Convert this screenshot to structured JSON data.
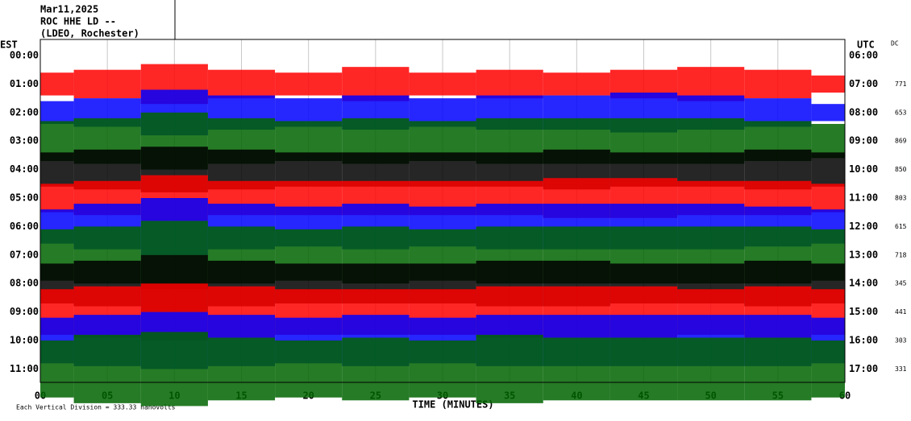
{
  "chart_data": {
    "type": "helicorder",
    "title_lines": [
      "Mar11,2025",
      "ROC HHE LD --",
      "(LDEO, Rochester)"
    ],
    "left_axis_label": "EST",
    "right_axis_label": "UTC",
    "dc_label": "DC",
    "est_labels": [
      "00:00",
      "01:00",
      "02:00",
      "03:00",
      "04:00",
      "05:00",
      "06:00",
      "07:00",
      "08:00",
      "09:00",
      "10:00",
      "11:00"
    ],
    "utc_labels": [
      "06:00",
      "07:00",
      "08:00",
      "09:00",
      "10:00",
      "11:00",
      "12:00",
      "13:00",
      "14:00",
      "15:00",
      "16:00",
      "17:00"
    ],
    "x_label": "TIME (MINUTES)",
    "footer": "Each Vertical Division = 333.33 nanovolts",
    "xlim": [
      0,
      60
    ],
    "xticks": [
      {
        "value": 0,
        "label": "00"
      },
      {
        "value": 5,
        "label": "05"
      },
      {
        "value": 10,
        "label": "10"
      },
      {
        "value": 15,
        "label": "15"
      },
      {
        "value": 20,
        "label": "20"
      },
      {
        "value": 25,
        "label": "25"
      },
      {
        "value": 30,
        "label": "30"
      },
      {
        "value": 35,
        "label": "35"
      },
      {
        "value": 40,
        "label": "40"
      },
      {
        "value": 45,
        "label": "45"
      },
      {
        "value": 50,
        "label": "50"
      },
      {
        "value": 55,
        "label": "55"
      },
      {
        "value": 60,
        "label": "60"
      }
    ],
    "x": [
      0,
      5,
      10,
      15,
      20,
      25,
      30,
      35,
      40,
      45,
      50,
      55,
      60
    ],
    "series": [
      {
        "row": 1,
        "color": "#ff0000",
        "dc": 771,
        "values": [
          0.4,
          0.5,
          0.7,
          0.5,
          0.4,
          0.6,
          0.4,
          0.5,
          0.4,
          0.5,
          0.6,
          0.5,
          0.3
        ]
      },
      {
        "row": 2,
        "color": "#0000ff",
        "dc": 653,
        "values": [
          0.4,
          0.5,
          0.8,
          0.6,
          0.5,
          0.6,
          0.5,
          0.6,
          0.6,
          0.7,
          0.6,
          0.5,
          0.3
        ]
      },
      {
        "row": 3,
        "color": "#006400",
        "dc": 869,
        "values": [
          0.7,
          0.8,
          1.0,
          0.8,
          0.7,
          0.8,
          0.7,
          0.8,
          0.8,
          0.8,
          0.8,
          0.7,
          0.6
        ]
      },
      {
        "row": 4,
        "color": "#000000",
        "dc": 850,
        "values": [
          0.6,
          0.7,
          0.8,
          0.7,
          0.6,
          0.6,
          0.6,
          0.6,
          0.7,
          0.6,
          0.6,
          0.7,
          0.6
        ]
      },
      {
        "row": 5,
        "color": "#ff0000",
        "dc": 803,
        "values": [
          0.5,
          0.6,
          0.8,
          0.6,
          0.6,
          0.6,
          0.6,
          0.6,
          0.7,
          0.7,
          0.6,
          0.6,
          0.5
        ]
      },
      {
        "row": 6,
        "color": "#0000ff",
        "dc": 615,
        "values": [
          0.6,
          0.8,
          1.0,
          0.8,
          0.7,
          0.8,
          0.7,
          0.8,
          0.8,
          0.8,
          0.8,
          0.7,
          0.6
        ]
      },
      {
        "row": 7,
        "color": "#006400",
        "dc": 718,
        "values": [
          0.9,
          1.0,
          1.2,
          1.0,
          0.9,
          1.0,
          0.9,
          1.0,
          1.0,
          1.0,
          1.0,
          1.0,
          0.9
        ]
      },
      {
        "row": 8,
        "color": "#000000",
        "dc": 345,
        "values": [
          0.7,
          0.8,
          1.0,
          0.8,
          0.7,
          0.7,
          0.7,
          0.8,
          0.8,
          0.7,
          0.7,
          0.8,
          0.7
        ]
      },
      {
        "row": 9,
        "color": "#ff0000",
        "dc": 441,
        "values": [
          0.8,
          0.9,
          1.0,
          0.9,
          0.8,
          0.8,
          0.8,
          0.9,
          0.9,
          0.9,
          0.8,
          0.9,
          0.8
        ]
      },
      {
        "row": 10,
        "color": "#0000ff",
        "dc": 303,
        "values": [
          0.8,
          0.9,
          1.0,
          0.9,
          0.8,
          0.9,
          0.8,
          0.9,
          0.9,
          0.9,
          0.9,
          0.9,
          0.8
        ]
      },
      {
        "row": 11,
        "color": "#006400",
        "dc": 331,
        "values": [
          1.0,
          1.2,
          1.3,
          1.1,
          1.0,
          1.1,
          1.0,
          1.2,
          1.1,
          1.1,
          1.1,
          1.1,
          1.0
        ]
      }
    ]
  }
}
